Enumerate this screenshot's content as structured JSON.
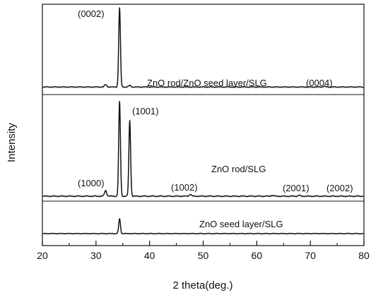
{
  "chart_data": {
    "type": "line",
    "title": "",
    "xlabel": "2 theta(deg.)",
    "ylabel": "Intensity",
    "xlim": [
      20,
      80
    ],
    "x_ticks": [
      20,
      30,
      40,
      50,
      60,
      70,
      80
    ],
    "grid": false,
    "legend": "none",
    "line_color": "#111111",
    "series": [
      {
        "name": "ZnO rod/ZnO seed layer/SLG",
        "baseline": 0.06,
        "peaks": [
          {
            "x": 31.8,
            "height": 0.03
          },
          {
            "x": 34.4,
            "height": 1.0
          },
          {
            "x": 36.3,
            "height": 0.02
          },
          {
            "x": 72.6,
            "height": 0.01
          }
        ]
      },
      {
        "name": "ZnO rod/SLG",
        "baseline": 0.0,
        "peaks": [
          {
            "x": 31.8,
            "height": 0.06
          },
          {
            "x": 34.4,
            "height": 1.0
          },
          {
            "x": 36.3,
            "height": 0.8
          },
          {
            "x": 47.6,
            "height": 0.02
          },
          {
            "x": 62.9,
            "height": 0.01
          },
          {
            "x": 67.9,
            "height": 0.01
          }
        ]
      },
      {
        "name": "ZnO seed layer/SLG",
        "baseline": 0.0,
        "peaks": [
          {
            "x": 34.4,
            "height": 1.0
          }
        ]
      }
    ],
    "annotations": [
      {
        "text": "(0002)"
      },
      {
        "text": "ZnO rod/ZnO seed layer/SLG"
      },
      {
        "text": "(0004)"
      },
      {
        "text": "(1001)"
      },
      {
        "text": "ZnO rod/SLG"
      },
      {
        "text": "(1000)"
      },
      {
        "text": "(1002)"
      },
      {
        "text": "(2001)"
      },
      {
        "text": "(2002)"
      },
      {
        "text": "ZnO seed layer/SLG"
      }
    ]
  }
}
